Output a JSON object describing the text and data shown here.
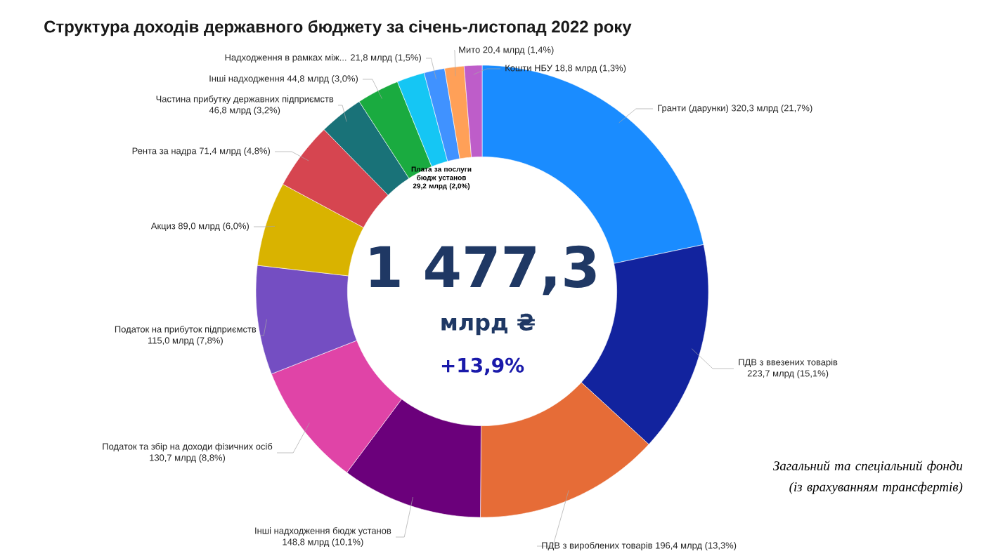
{
  "chart_data": {
    "type": "donut",
    "title": "Структура доходів державного бюджету за січень-листопад 2022 року",
    "categories": [
      "Гранти (дарунки)",
      "ПДВ з ввезених товарів",
      "ПДВ з вироблених товарів",
      "Інші надходження бюдж установ",
      "Податок та збір на доходи фізичних осіб",
      "Податок на прибуток підприємств",
      "Акциз",
      "Рента за надра",
      "Частина прибутку державних підприємств",
      "Інші надходження",
      "Плата за послуги бюдж установ",
      "Надходження в рамках між...",
      "Мито",
      "Кошти НБУ"
    ],
    "values": [
      320.3,
      223.7,
      196.4,
      148.8,
      130.7,
      115.0,
      89.0,
      71.4,
      46.8,
      44.8,
      29.2,
      21.8,
      20.4,
      18.8
    ],
    "value_labels": [
      "320,3 млрд (21,7%)",
      "223,7 млрд (15,1%)",
      "196,4 млрд (13,3%)",
      "148,8 млрд (10,1%)",
      "130,7 млрд (8,8%)",
      "115,0 млрд (7,8%)",
      "89,0 млрд (6,0%)",
      "71,4 млрд (4,8%)",
      "46,8 млрд (3,2%)",
      "44,8 млрд (3,0%)",
      "29,2 млрд (2,0%)",
      "21,8 млрд (1,5%)",
      "20,4 млрд (1,4%)",
      "18,8 млрд (1,3%)"
    ],
    "colors": [
      "#1a8cff",
      "#12239e",
      "#e66c37",
      "#6b007b",
      "#e044a7",
      "#744ec2",
      "#d9b300",
      "#d64550",
      "#197278",
      "#1aab40",
      "#15c6f4",
      "#4092ff",
      "#ffa058",
      "#be5dc9"
    ],
    "annotations": [
      "1 477,3",
      "млрд ₴",
      "+13,9%",
      "Загальний та спеціальний фонди (із врахуванням трансфертів)"
    ]
  }
}
